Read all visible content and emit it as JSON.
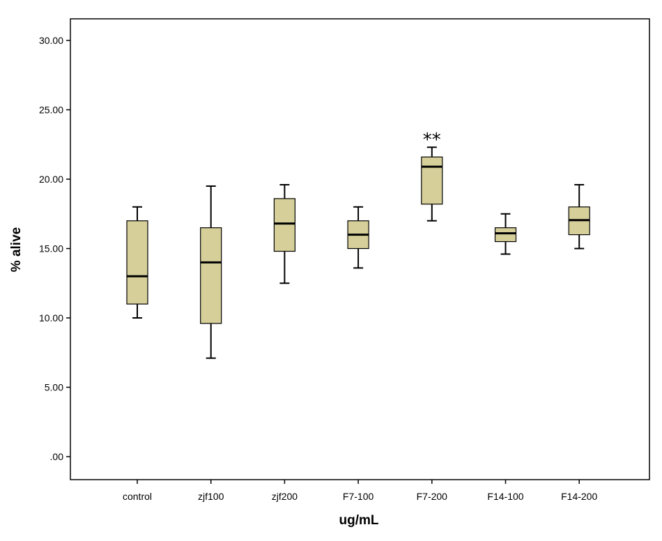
{
  "chart_data": {
    "type": "boxplot",
    "xlabel": "ug/mL",
    "ylabel": "% alive",
    "ylim": [
      0,
      32
    ],
    "yticks": [
      ".00",
      "5.00",
      "10.00",
      "15.00",
      "20.00",
      "25.00",
      "30.00"
    ],
    "ytick_values": [
      0,
      5,
      10,
      15,
      20,
      25,
      30
    ],
    "categories": [
      "control",
      "zjf100",
      "zjf200",
      "F7-100",
      "F7-200",
      "F14-100",
      "F14-200"
    ],
    "boxes": [
      {
        "min": 10.0,
        "q1": 11.0,
        "median": 13.0,
        "q3": 17.0,
        "max": 18.0,
        "annotation": ""
      },
      {
        "min": 7.1,
        "q1": 9.6,
        "median": 14.0,
        "q3": 16.5,
        "max": 19.5,
        "annotation": ""
      },
      {
        "min": 12.5,
        "q1": 14.8,
        "median": 16.8,
        "q3": 18.6,
        "max": 19.6,
        "annotation": ""
      },
      {
        "min": 13.6,
        "q1": 15.0,
        "median": 16.0,
        "q3": 17.0,
        "max": 18.0,
        "annotation": ""
      },
      {
        "min": 17.0,
        "q1": 18.2,
        "median": 20.9,
        "q3": 21.6,
        "max": 22.3,
        "annotation": "**"
      },
      {
        "min": 14.6,
        "q1": 15.5,
        "median": 16.1,
        "q3": 16.5,
        "max": 17.5,
        "annotation": ""
      },
      {
        "min": 15.0,
        "q1": 16.0,
        "median": 17.05,
        "q3": 18.0,
        "max": 19.6,
        "annotation": ""
      }
    ],
    "box_color": "#d6cf9a",
    "grid": false,
    "legend": "none"
  }
}
